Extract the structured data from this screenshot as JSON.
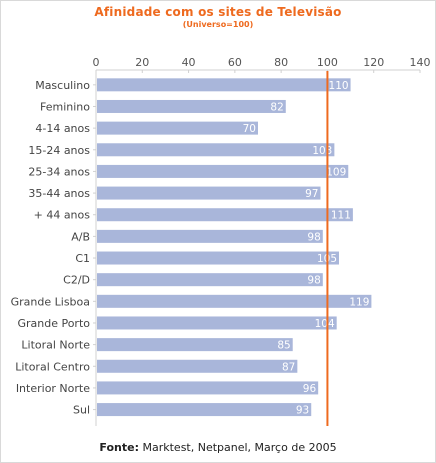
{
  "colors": {
    "title": "#ee6a1f",
    "bar": "#a9b6da",
    "reference_line": "#ee6a1f",
    "grid": "#d0d0d0",
    "axis_text": "#555555"
  },
  "footer": {
    "label": "Fonte:",
    "text": "Marktest, Netpanel, Março de 2005"
  },
  "chart_data": {
    "type": "bar",
    "orientation": "horizontal",
    "title": "Afinidade com os sites de Televisão",
    "subtitle": "(Universo=100)",
    "categories": [
      "Masculino",
      "Feminino",
      "4-14 anos",
      "15-24 anos",
      "25-34 anos",
      "35-44 anos",
      "+ 44 anos",
      "A/B",
      "C1",
      "C2/D",
      "Grande Lisboa",
      "Grande Porto",
      "Litoral Norte",
      "Litoral Centro",
      "Interior Norte",
      "Sul"
    ],
    "values": [
      110,
      82,
      70,
      103,
      109,
      97,
      111,
      98,
      105,
      98,
      119,
      104,
      85,
      87,
      96,
      93
    ],
    "xlim": [
      0,
      140
    ],
    "xticks": [
      0,
      20,
      40,
      60,
      80,
      100,
      120,
      140
    ],
    "reference_line": 100,
    "grid": false,
    "data_labels": true
  }
}
